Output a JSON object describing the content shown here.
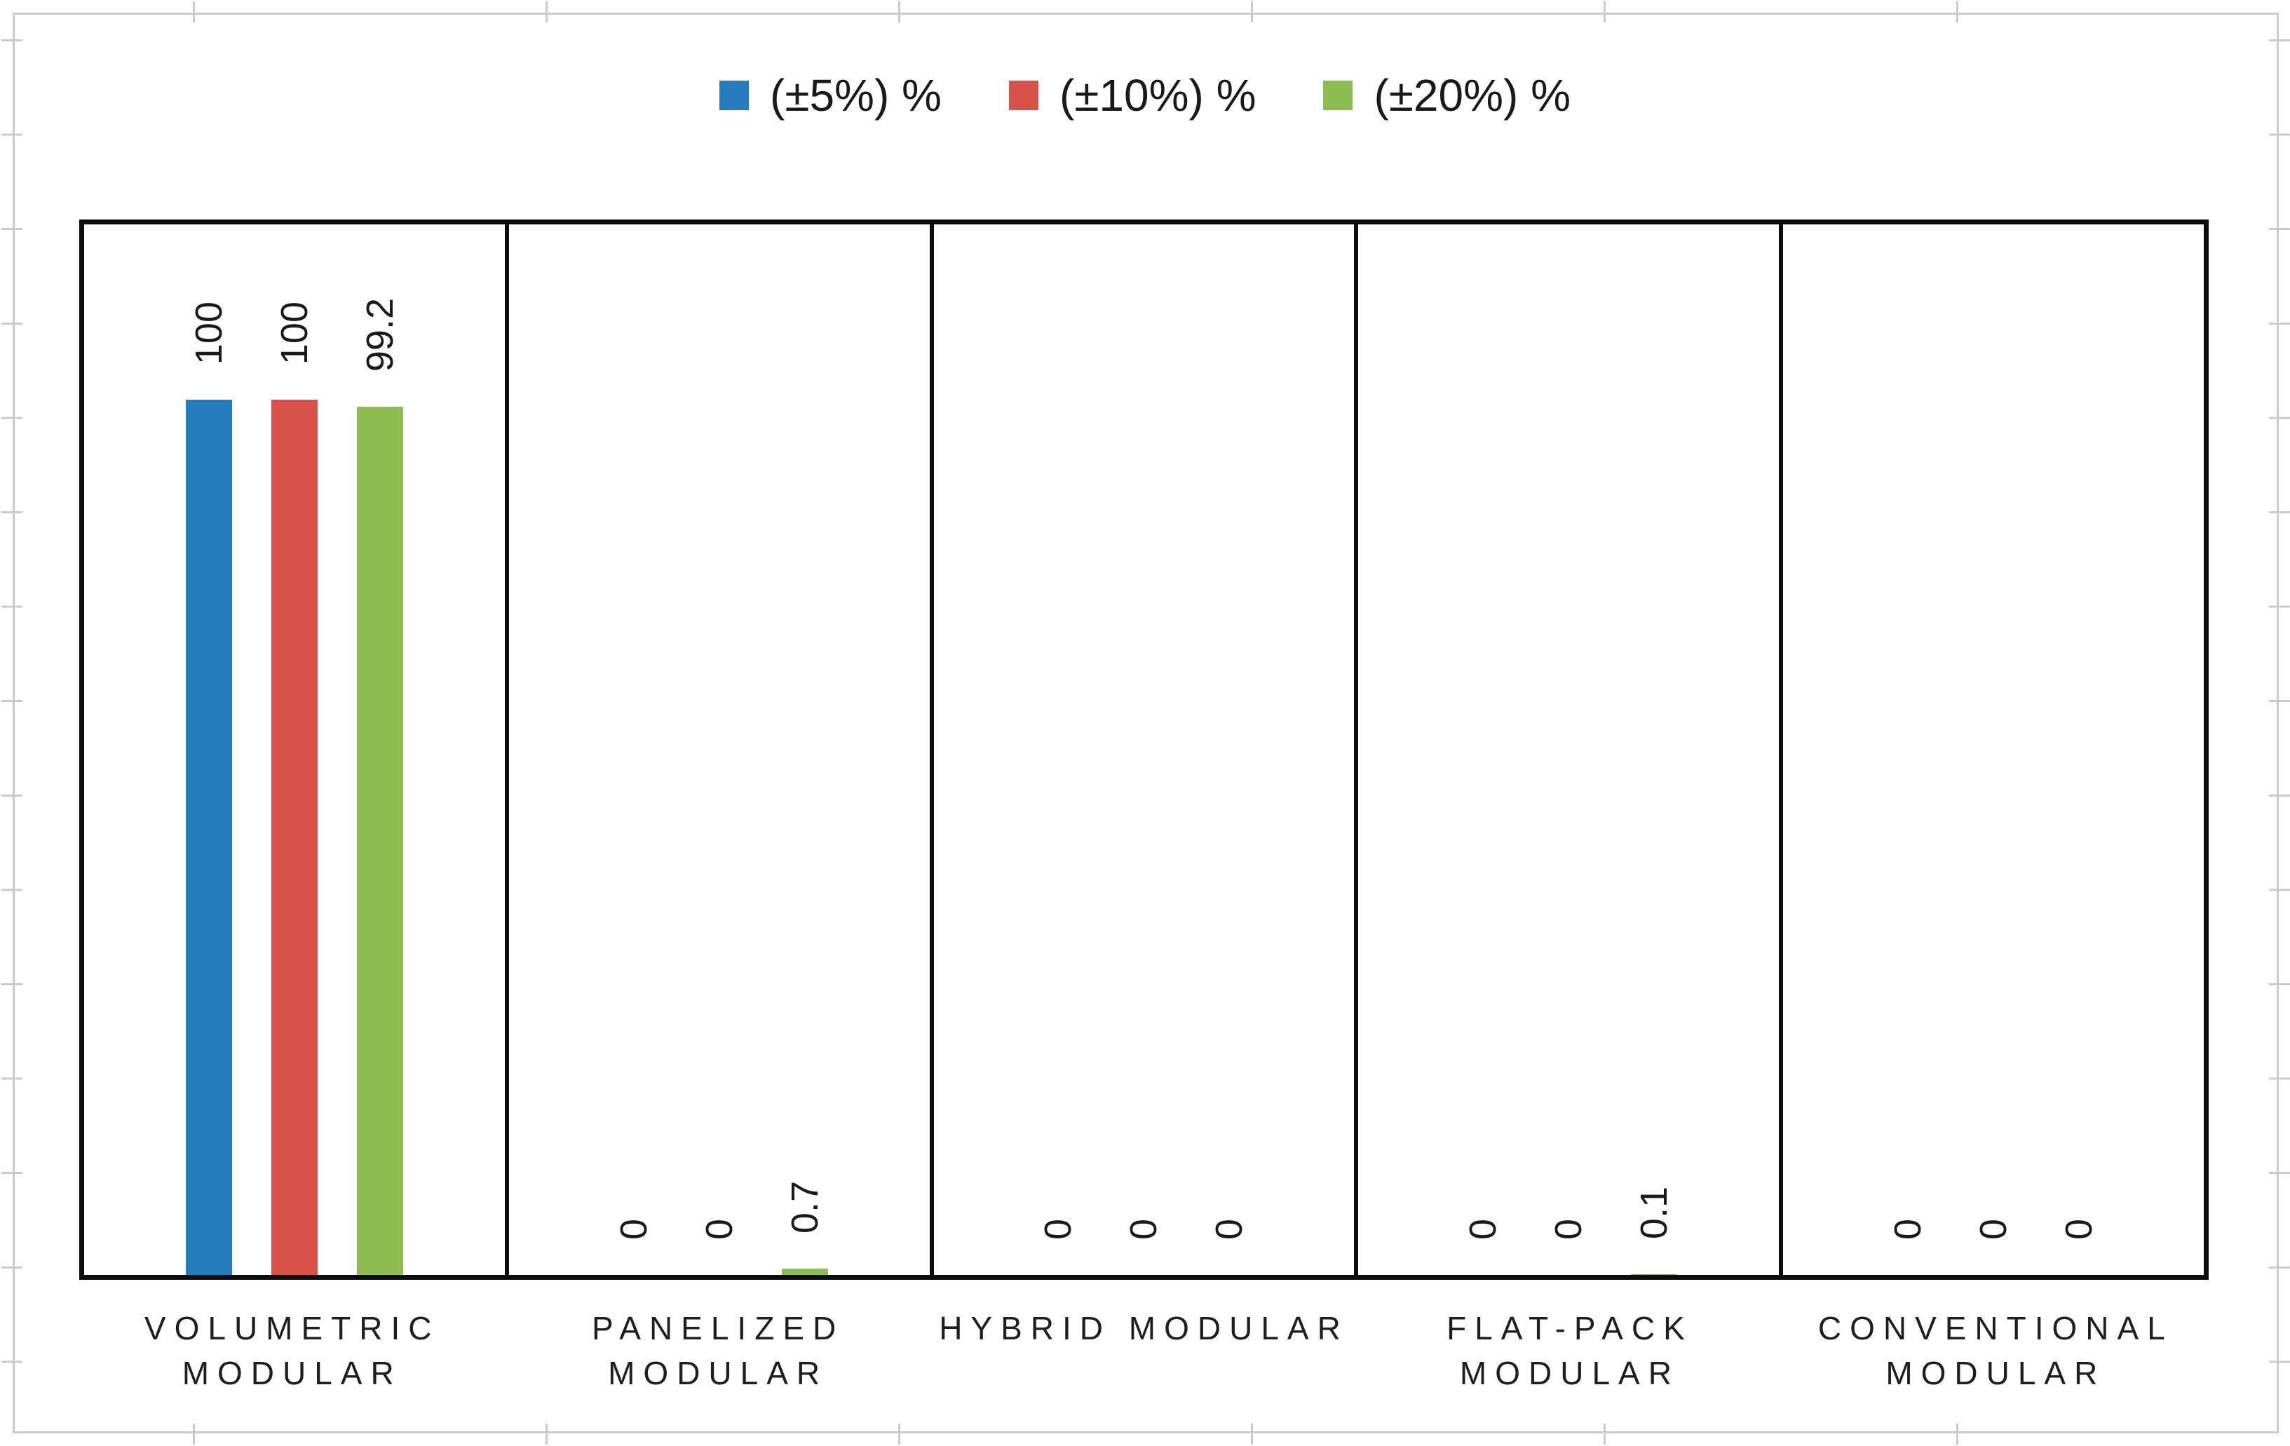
{
  "legend": [
    {
      "label": "(±5%) %",
      "color": "#257dbe"
    },
    {
      "label": "(±10%) %",
      "color": "#d75349"
    },
    {
      "label": "(±20%) %",
      "color": "#8dbc4f"
    }
  ],
  "chart_data": {
    "type": "bar",
    "title": "",
    "xlabel": "",
    "ylabel": "",
    "ylim": [
      0,
      120
    ],
    "grid": false,
    "legend_position": "top",
    "panel_borders": true,
    "categories": [
      "VOLUMETRIC MODULAR",
      "PANELIZED MODULAR",
      "HYBRID MODULAR",
      "FLAT-PACK MODULAR",
      "CONVENTIONAL MODULAR"
    ],
    "category_lines": [
      [
        "VOLUMETRIC",
        "MODULAR"
      ],
      [
        "PANELIZED",
        "MODULAR"
      ],
      [
        "HYBRID MODULAR"
      ],
      [
        "FLAT-PACK",
        "MODULAR"
      ],
      [
        "CONVENTIONAL",
        "MODULAR"
      ]
    ],
    "series": [
      {
        "name": "(±5%) %",
        "color": "#257dbe",
        "values": [
          100,
          0,
          0,
          0,
          0
        ]
      },
      {
        "name": "(±10%) %",
        "color": "#d75349",
        "values": [
          100,
          0,
          0,
          0,
          0
        ]
      },
      {
        "name": "(±20%) %",
        "color": "#8dbc4f",
        "values": [
          99.2,
          0.7,
          0,
          0.1,
          0
        ]
      }
    ],
    "value_labels": [
      [
        "100",
        "100",
        "99.2"
      ],
      [
        "0",
        "0",
        "0.7"
      ],
      [
        "0",
        "0",
        "0"
      ],
      [
        "0",
        "0",
        "0.1"
      ],
      [
        "0",
        "0",
        "0"
      ]
    ]
  }
}
